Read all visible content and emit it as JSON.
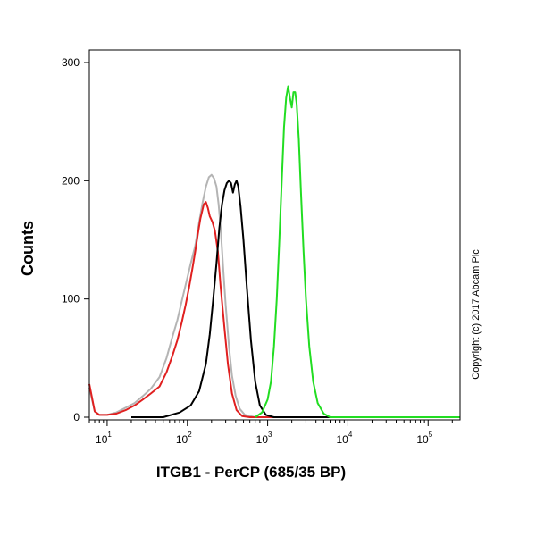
{
  "chart_data": {
    "type": "line",
    "title": "",
    "xlabel": "ITGB1 - PerCP (685/35 BP)",
    "ylabel": "Counts",
    "x_scale": "log",
    "xlim": [
      6,
      250000
    ],
    "ylim": [
      0,
      300
    ],
    "grid": false,
    "x_ticks": [
      {
        "value": 10,
        "base": "10",
        "exp": "1"
      },
      {
        "value": 100,
        "base": "10",
        "exp": "2"
      },
      {
        "value": 1000,
        "base": "10",
        "exp": "3"
      },
      {
        "value": 10000,
        "base": "10",
        "exp": "4"
      },
      {
        "value": 100000,
        "base": "10",
        "exp": "5"
      }
    ],
    "y_ticks": [
      {
        "value": 0,
        "label": "0"
      },
      {
        "value": 100,
        "label": "100"
      },
      {
        "value": 200,
        "label": "200"
      },
      {
        "value": 300,
        "label": "300"
      }
    ],
    "series": [
      {
        "name": "grey",
        "color": "#b4b4b4",
        "points": [
          [
            6,
            25
          ],
          [
            7,
            5
          ],
          [
            8,
            2
          ],
          [
            10,
            2
          ],
          [
            13,
            4
          ],
          [
            17,
            8
          ],
          [
            22,
            12
          ],
          [
            28,
            18
          ],
          [
            35,
            24
          ],
          [
            45,
            34
          ],
          [
            55,
            50
          ],
          [
            65,
            68
          ],
          [
            75,
            82
          ],
          [
            85,
            98
          ],
          [
            95,
            112
          ],
          [
            110,
            130
          ],
          [
            125,
            145
          ],
          [
            140,
            165
          ],
          [
            155,
            182
          ],
          [
            170,
            195
          ],
          [
            185,
            203
          ],
          [
            200,
            205
          ],
          [
            215,
            202
          ],
          [
            230,
            195
          ],
          [
            245,
            180
          ],
          [
            260,
            160
          ],
          [
            280,
            125
          ],
          [
            300,
            95
          ],
          [
            330,
            60
          ],
          [
            360,
            35
          ],
          [
            400,
            18
          ],
          [
            450,
            7
          ],
          [
            520,
            2
          ],
          [
            700,
            0
          ],
          [
            250000,
            0
          ]
        ]
      },
      {
        "name": "red",
        "color": "#e02020",
        "points": [
          [
            6,
            28
          ],
          [
            7,
            5
          ],
          [
            8,
            2
          ],
          [
            10,
            2
          ],
          [
            13,
            3
          ],
          [
            17,
            6
          ],
          [
            22,
            10
          ],
          [
            28,
            15
          ],
          [
            35,
            20
          ],
          [
            45,
            26
          ],
          [
            55,
            38
          ],
          [
            65,
            52
          ],
          [
            75,
            65
          ],
          [
            85,
            80
          ],
          [
            95,
            95
          ],
          [
            105,
            110
          ],
          [
            115,
            125
          ],
          [
            125,
            140
          ],
          [
            135,
            155
          ],
          [
            145,
            168
          ],
          [
            160,
            180
          ],
          [
            170,
            182
          ],
          [
            180,
            177
          ],
          [
            190,
            170
          ],
          [
            205,
            165
          ],
          [
            220,
            158
          ],
          [
            240,
            140
          ],
          [
            260,
            110
          ],
          [
            290,
            75
          ],
          [
            320,
            45
          ],
          [
            360,
            20
          ],
          [
            410,
            6
          ],
          [
            480,
            1
          ],
          [
            600,
            0
          ],
          [
            250000,
            0
          ]
        ]
      },
      {
        "name": "black",
        "color": "#000000",
        "points": [
          [
            20,
            0
          ],
          [
            50,
            0
          ],
          [
            80,
            4
          ],
          [
            110,
            10
          ],
          [
            140,
            22
          ],
          [
            170,
            45
          ],
          [
            190,
            70
          ],
          [
            210,
            100
          ],
          [
            230,
            130
          ],
          [
            250,
            160
          ],
          [
            270,
            180
          ],
          [
            290,
            192
          ],
          [
            310,
            198
          ],
          [
            330,
            200
          ],
          [
            350,
            198
          ],
          [
            370,
            190
          ],
          [
            390,
            197
          ],
          [
            410,
            200
          ],
          [
            430,
            195
          ],
          [
            460,
            178
          ],
          [
            500,
            150
          ],
          [
            550,
            110
          ],
          [
            620,
            65
          ],
          [
            700,
            30
          ],
          [
            800,
            10
          ],
          [
            950,
            2
          ],
          [
            1200,
            0
          ],
          [
            250000,
            0
          ]
        ]
      },
      {
        "name": "green",
        "color": "#22dd22",
        "points": [
          [
            700,
            0
          ],
          [
            850,
            4
          ],
          [
            1000,
            15
          ],
          [
            1100,
            30
          ],
          [
            1200,
            60
          ],
          [
            1300,
            100
          ],
          [
            1400,
            150
          ],
          [
            1500,
            200
          ],
          [
            1600,
            245
          ],
          [
            1700,
            270
          ],
          [
            1800,
            280
          ],
          [
            1900,
            270
          ],
          [
            2000,
            262
          ],
          [
            2100,
            275
          ],
          [
            2200,
            275
          ],
          [
            2300,
            265
          ],
          [
            2450,
            235
          ],
          [
            2600,
            190
          ],
          [
            2800,
            140
          ],
          [
            3000,
            100
          ],
          [
            3300,
            60
          ],
          [
            3700,
            30
          ],
          [
            4200,
            12
          ],
          [
            5000,
            3
          ],
          [
            6000,
            0
          ],
          [
            250000,
            0
          ]
        ]
      }
    ]
  },
  "copyright": "Copyright (c) 2017 Abcam Plc"
}
